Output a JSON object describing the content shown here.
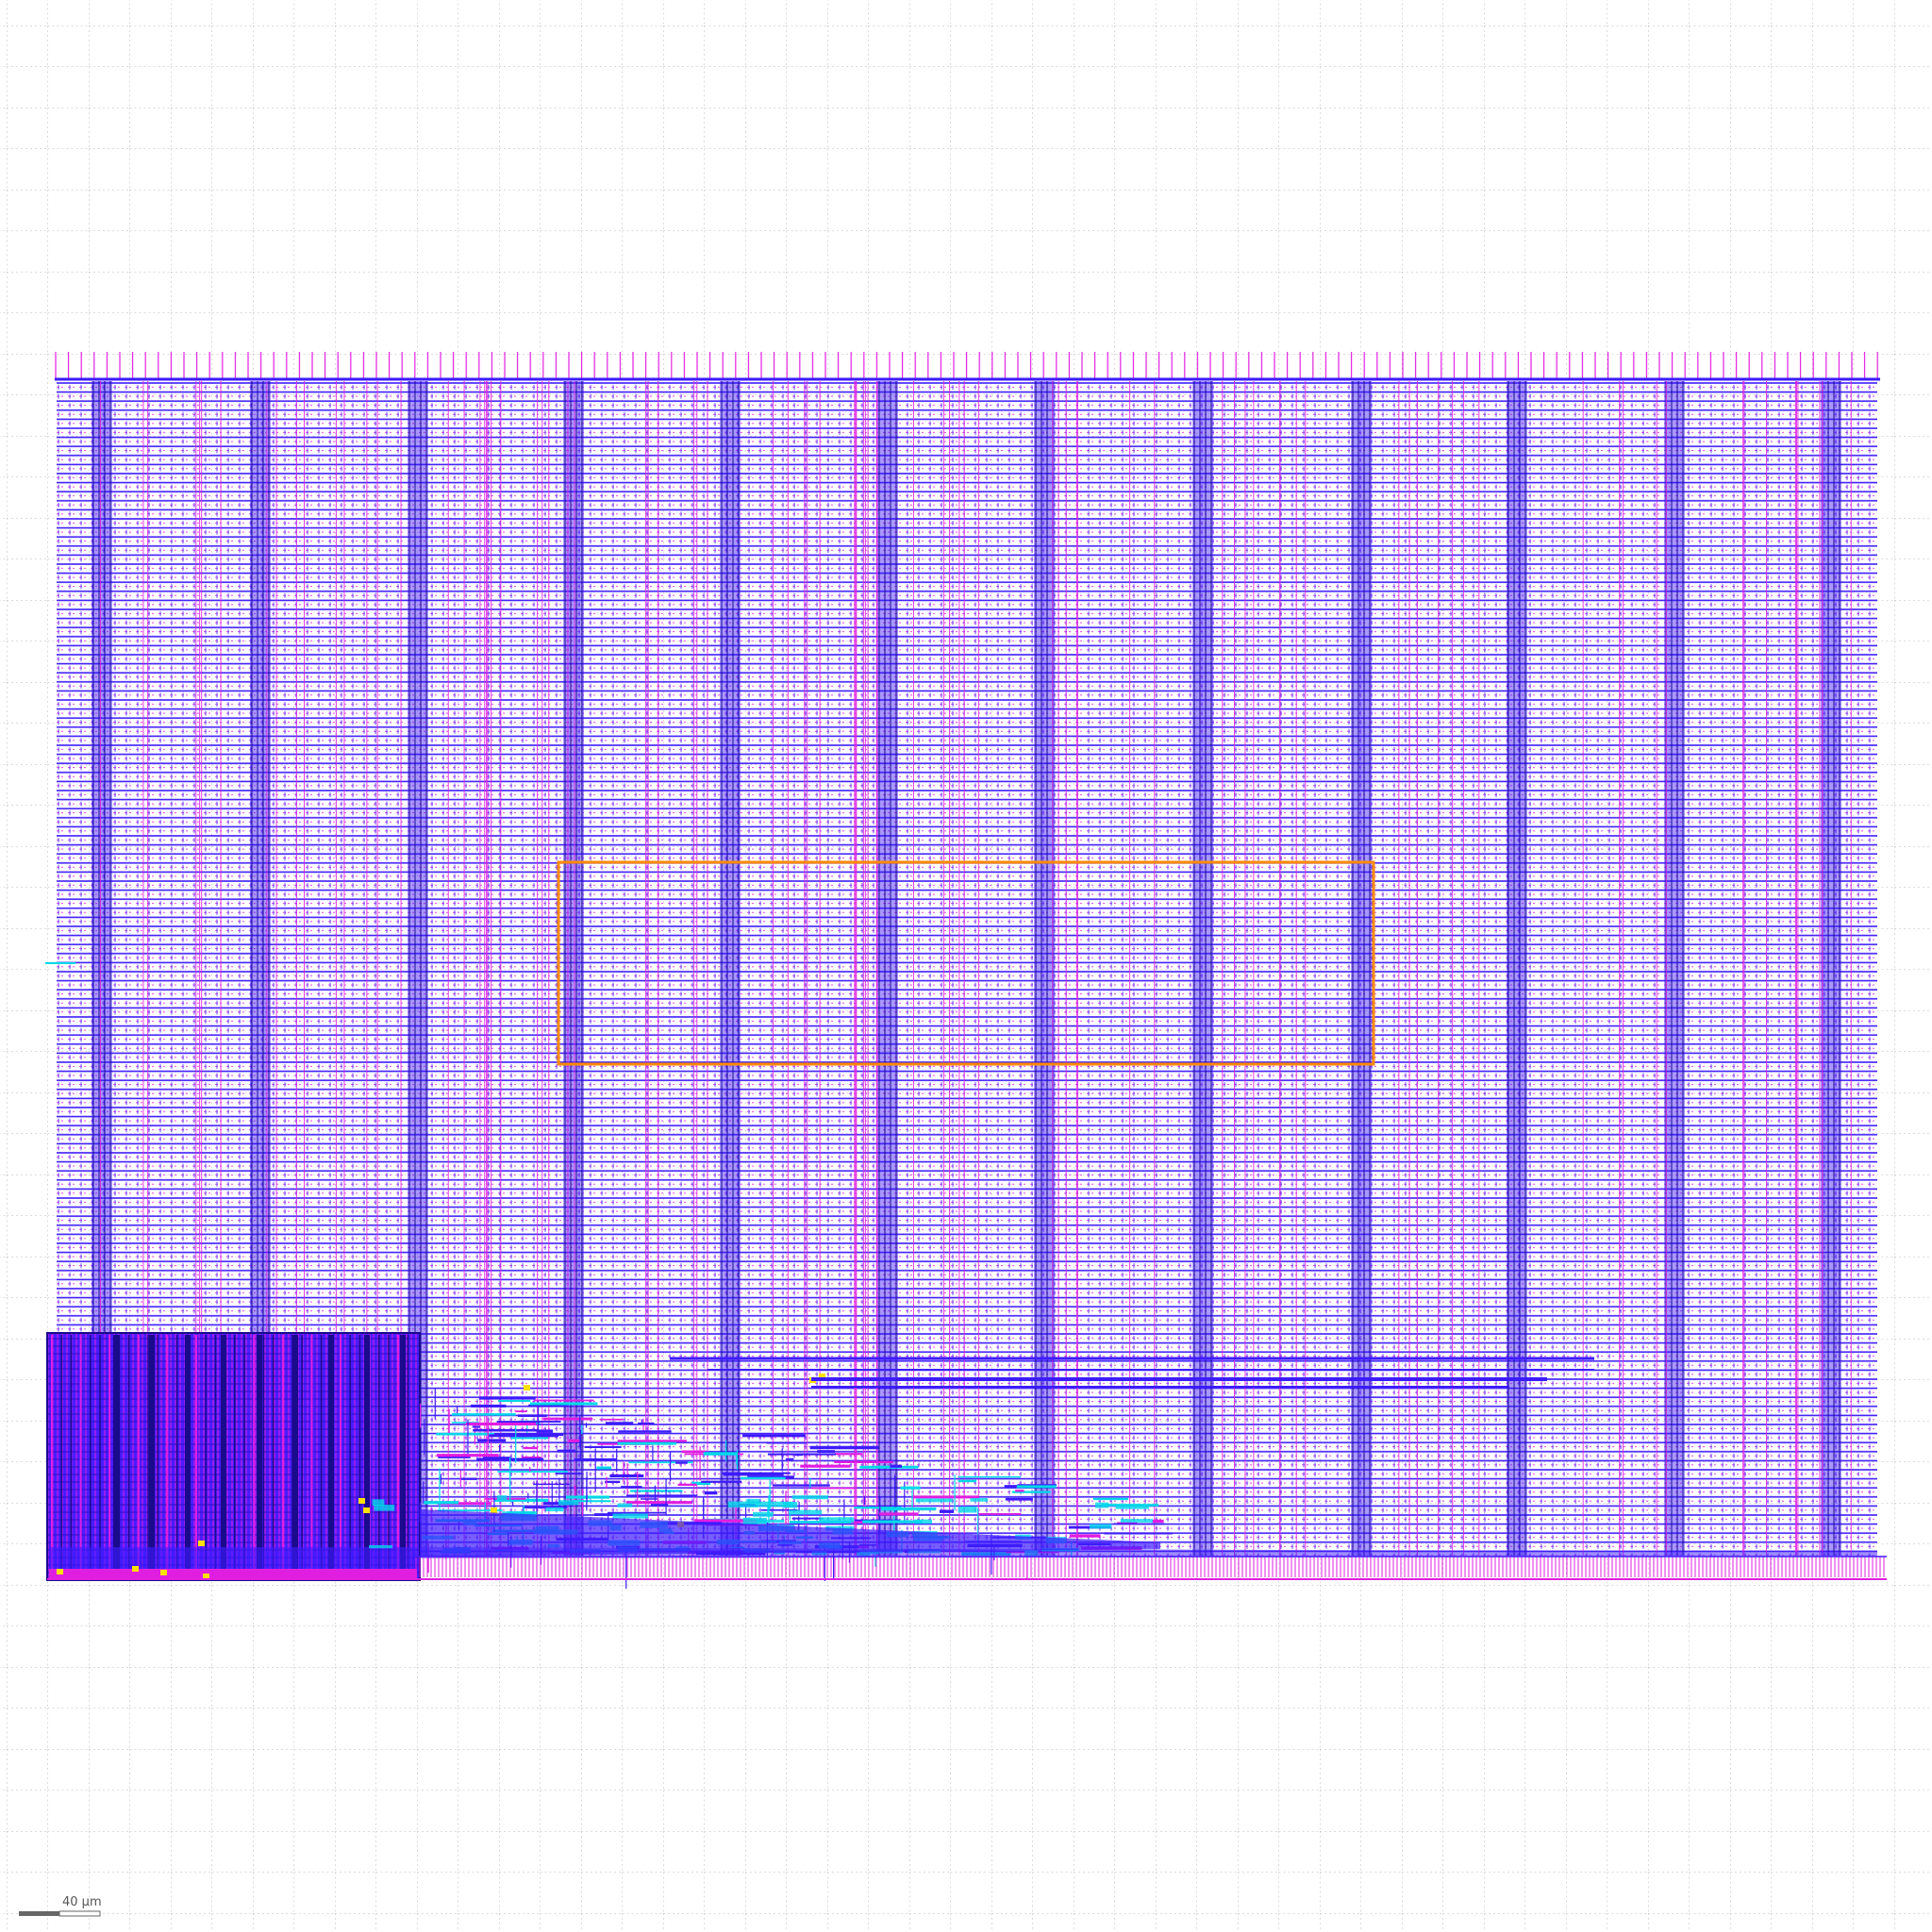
{
  "viewer": {
    "background": "#ffffff",
    "grid_color": "#b8b8b8"
  },
  "layers": {
    "metal1": "#3d1bff",
    "metal2": "#e01ee0",
    "via": "#00d8e8",
    "highlight": "#ffe000",
    "selection": "#ff8a00",
    "dark": "#1a0a8c"
  },
  "scale_bar": {
    "label": "40 µm"
  }
}
